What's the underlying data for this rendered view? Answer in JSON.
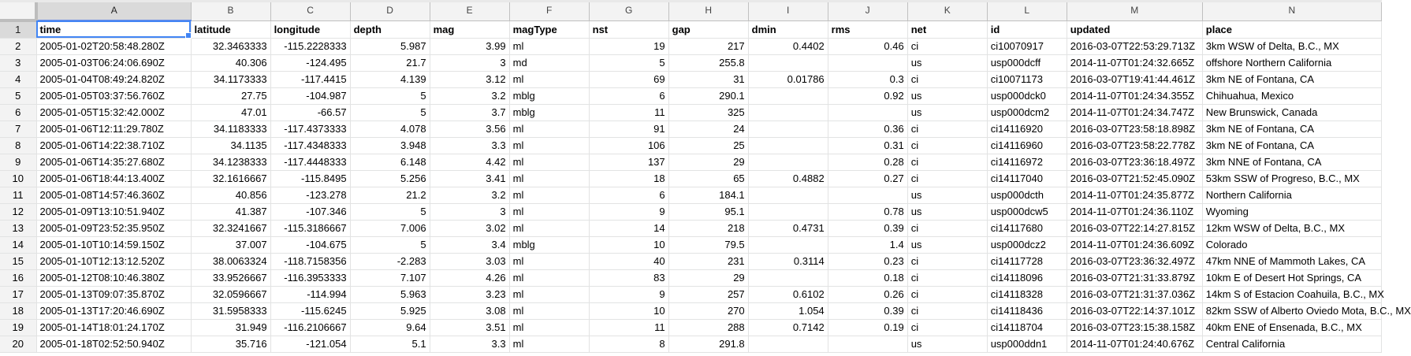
{
  "sheet": {
    "column_letters": [
      "A",
      "B",
      "C",
      "D",
      "E",
      "F",
      "G",
      "H",
      "I",
      "J",
      "K",
      "L",
      "M",
      "N"
    ],
    "row_numbers": [
      "1",
      "2",
      "3",
      "4",
      "5",
      "6",
      "7",
      "8",
      "9",
      "10",
      "11",
      "12",
      "13",
      "14",
      "15",
      "16",
      "17",
      "18",
      "19",
      "20"
    ],
    "header": [
      "time",
      "latitude",
      "longitude",
      "depth",
      "mag",
      "magType",
      "nst",
      "gap",
      "dmin",
      "rms",
      "net",
      "id",
      "updated",
      "place"
    ],
    "rows": [
      [
        "2005-01-02T20:58:48.280Z",
        "32.3463333",
        "-115.2228333",
        "5.987",
        "3.99",
        "ml",
        "19",
        "217",
        "0.4402",
        "0.46",
        "ci",
        "ci10070917",
        "2016-03-07T22:53:29.713Z",
        "3km WSW of Delta, B.C., MX"
      ],
      [
        "2005-01-03T06:24:06.690Z",
        "40.306",
        "-124.495",
        "21.7",
        "3",
        "md",
        "5",
        "255.8",
        "",
        "",
        "us",
        "usp000dcff",
        "2014-11-07T01:24:32.665Z",
        "offshore Northern California"
      ],
      [
        "2005-01-04T08:49:24.820Z",
        "34.1173333",
        "-117.4415",
        "4.139",
        "3.12",
        "ml",
        "69",
        "31",
        "0.01786",
        "0.3",
        "ci",
        "ci10071173",
        "2016-03-07T19:41:44.461Z",
        "3km NE of Fontana, CA"
      ],
      [
        "2005-01-05T03:37:56.760Z",
        "27.75",
        "-104.987",
        "5",
        "3.2",
        "mblg",
        "6",
        "290.1",
        "",
        "0.92",
        "us",
        "usp000dck0",
        "2014-11-07T01:24:34.355Z",
        "Chihuahua, Mexico"
      ],
      [
        "2005-01-05T15:32:42.000Z",
        "47.01",
        "-66.57",
        "5",
        "3.7",
        "mblg",
        "11",
        "325",
        "",
        "",
        "us",
        "usp000dcm2",
        "2014-11-07T01:24:34.747Z",
        "New Brunswick, Canada"
      ],
      [
        "2005-01-06T12:11:29.780Z",
        "34.1183333",
        "-117.4373333",
        "4.078",
        "3.56",
        "ml",
        "91",
        "24",
        "",
        "0.36",
        "ci",
        "ci14116920",
        "2016-03-07T23:58:18.898Z",
        "3km NE of Fontana, CA"
      ],
      [
        "2005-01-06T14:22:38.710Z",
        "34.1135",
        "-117.4348333",
        "3.948",
        "3.3",
        "ml",
        "106",
        "25",
        "",
        "0.31",
        "ci",
        "ci14116960",
        "2016-03-07T23:58:22.778Z",
        "3km NE of Fontana, CA"
      ],
      [
        "2005-01-06T14:35:27.680Z",
        "34.1238333",
        "-117.4448333",
        "6.148",
        "4.42",
        "ml",
        "137",
        "29",
        "",
        "0.28",
        "ci",
        "ci14116972",
        "2016-03-07T23:36:18.497Z",
        "3km NNE of Fontana, CA"
      ],
      [
        "2005-01-06T18:44:13.400Z",
        "32.1616667",
        "-115.8495",
        "5.256",
        "3.41",
        "ml",
        "18",
        "65",
        "0.4882",
        "0.27",
        "ci",
        "ci14117040",
        "2016-03-07T21:52:45.090Z",
        "53km SSW of Progreso, B.C., MX"
      ],
      [
        "2005-01-08T14:57:46.360Z",
        "40.856",
        "-123.278",
        "21.2",
        "3.2",
        "ml",
        "6",
        "184.1",
        "",
        "",
        "us",
        "usp000dcth",
        "2014-11-07T01:24:35.877Z",
        "Northern California"
      ],
      [
        "2005-01-09T13:10:51.940Z",
        "41.387",
        "-107.346",
        "5",
        "3",
        "ml",
        "9",
        "95.1",
        "",
        "0.78",
        "us",
        "usp000dcw5",
        "2014-11-07T01:24:36.110Z",
        "Wyoming"
      ],
      [
        "2005-01-09T23:52:35.950Z",
        "32.3241667",
        "-115.3186667",
        "7.006",
        "3.02",
        "ml",
        "14",
        "218",
        "0.4731",
        "0.39",
        "ci",
        "ci14117680",
        "2016-03-07T22:14:27.815Z",
        "12km WSW of Delta, B.C., MX"
      ],
      [
        "2005-01-10T10:14:59.150Z",
        "37.007",
        "-104.675",
        "5",
        "3.4",
        "mblg",
        "10",
        "79.5",
        "",
        "1.4",
        "us",
        "usp000dcz2",
        "2014-11-07T01:24:36.609Z",
        "Colorado"
      ],
      [
        "2005-01-10T12:13:12.520Z",
        "38.0063324",
        "-118.7158356",
        "-2.283",
        "3.03",
        "ml",
        "40",
        "231",
        "0.3114",
        "0.23",
        "ci",
        "ci14117728",
        "2016-03-07T23:36:32.497Z",
        "47km NNE of Mammoth Lakes, CA"
      ],
      [
        "2005-01-12T08:10:46.380Z",
        "33.9526667",
        "-116.3953333",
        "7.107",
        "4.26",
        "ml",
        "83",
        "29",
        "",
        "0.18",
        "ci",
        "ci14118096",
        "2016-03-07T21:31:33.879Z",
        "10km E of Desert Hot Springs, CA"
      ],
      [
        "2005-01-13T09:07:35.870Z",
        "32.0596667",
        "-114.994",
        "5.963",
        "3.23",
        "ml",
        "9",
        "257",
        "0.6102",
        "0.26",
        "ci",
        "ci14118328",
        "2016-03-07T21:31:37.036Z",
        "14km S of Estacion Coahuila, B.C., MX"
      ],
      [
        "2005-01-13T17:20:46.690Z",
        "31.5958333",
        "-115.6245",
        "5.925",
        "3.08",
        "ml",
        "10",
        "270",
        "1.054",
        "0.39",
        "ci",
        "ci14118436",
        "2016-03-07T22:14:37.101Z",
        "82km SSW of Alberto Oviedo Mota, B.C., MX"
      ],
      [
        "2005-01-14T18:01:24.170Z",
        "31.949",
        "-116.2106667",
        "9.64",
        "3.51",
        "ml",
        "11",
        "288",
        "0.7142",
        "0.19",
        "ci",
        "ci14118704",
        "2016-03-07T23:15:38.158Z",
        "40km ENE of Ensenada, B.C., MX"
      ],
      [
        "2005-01-18T02:52:50.940Z",
        "35.716",
        "-121.054",
        "5.1",
        "3.3",
        "ml",
        "8",
        "291.8",
        "",
        "",
        "us",
        "usp000ddn1",
        "2014-11-07T01:24:40.676Z",
        "Central California"
      ]
    ]
  }
}
